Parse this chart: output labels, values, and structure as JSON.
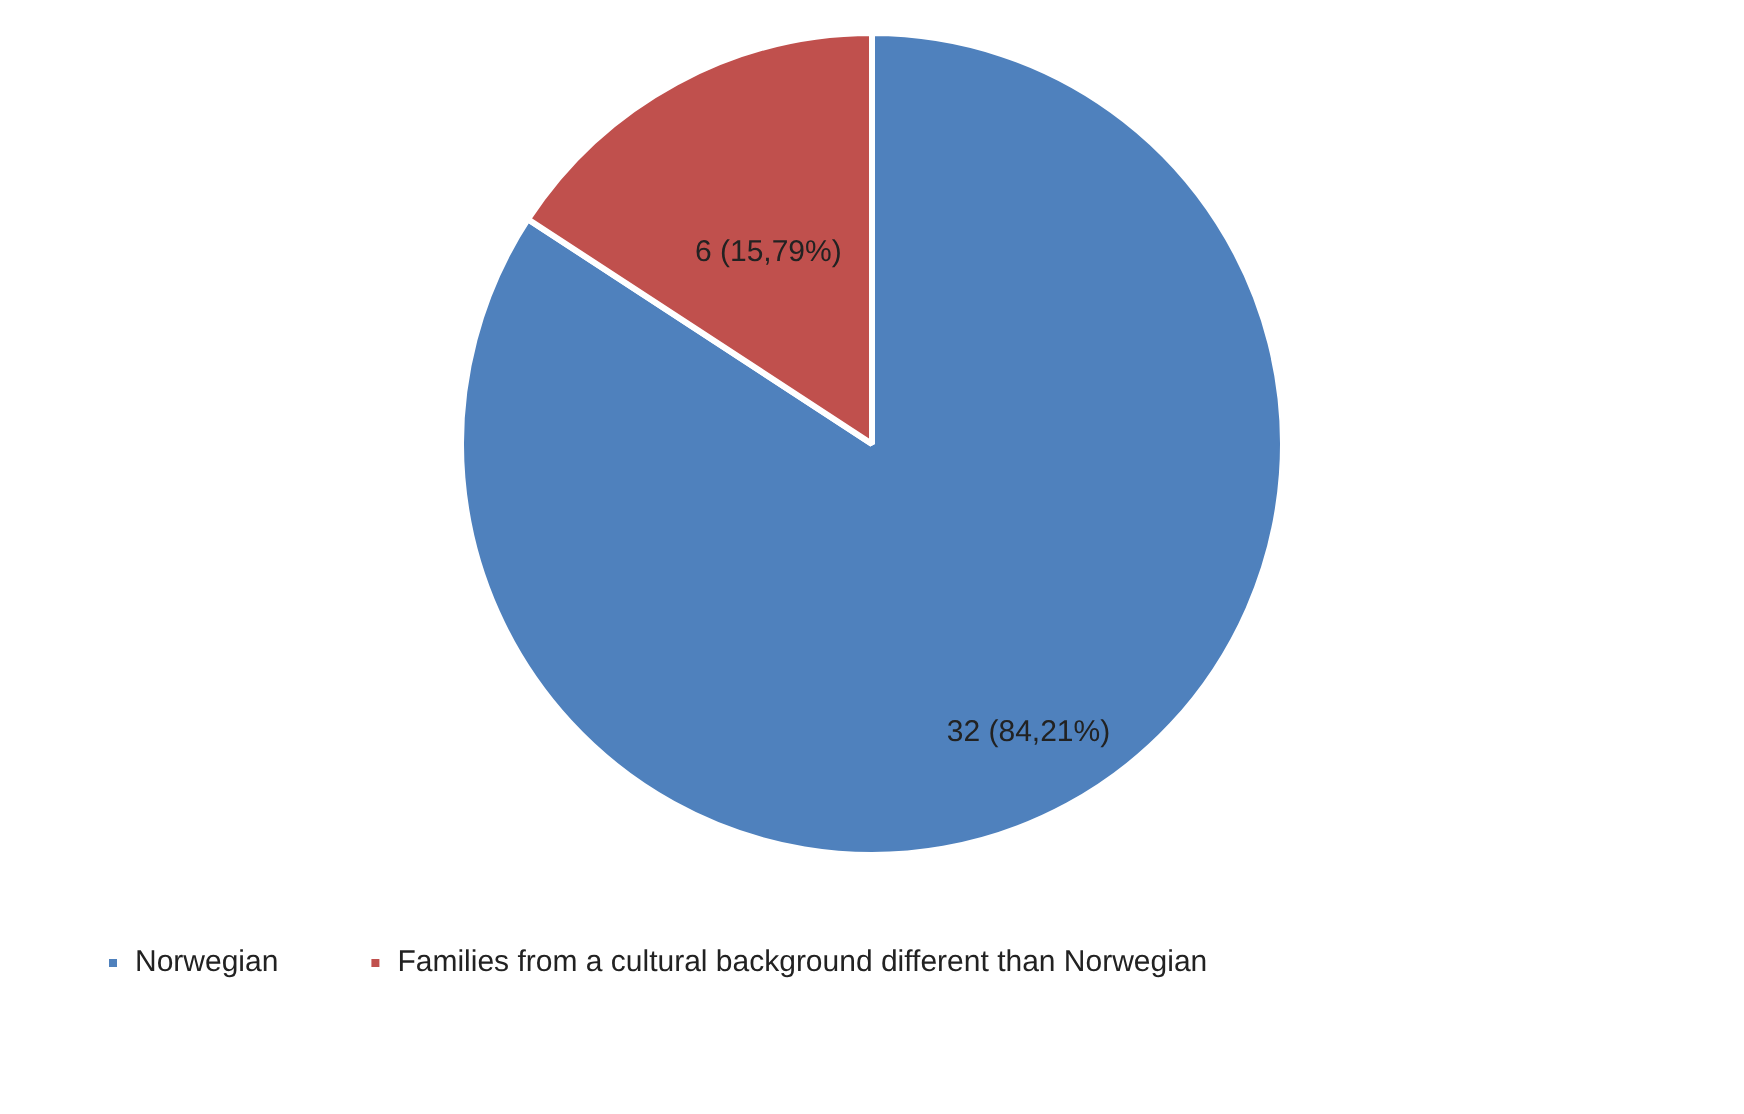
{
  "chart_data": {
    "type": "pie",
    "categories": [
      "Norwegian",
      "Families from a cultural background different than Norwegian"
    ],
    "values": [
      32,
      6
    ],
    "colors": [
      "#4f81bd",
      "#c0504d"
    ],
    "value_labels": [
      "32 (84,21%)",
      "6 (15,79%)"
    ],
    "legend": "bottom"
  }
}
